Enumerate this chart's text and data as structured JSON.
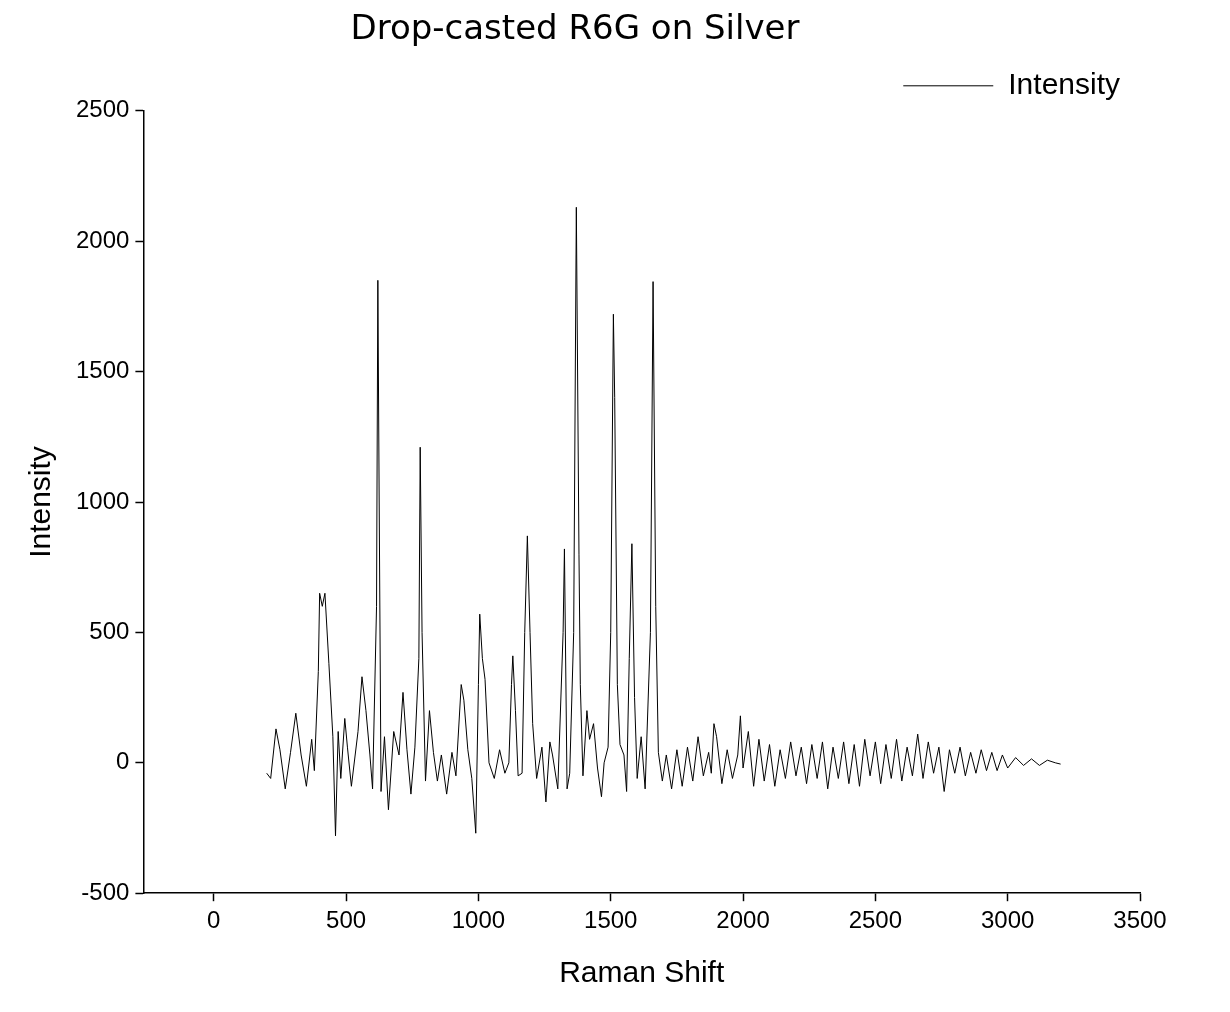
{
  "chart_data": {
    "type": "line",
    "title": "Drop-casted R6G on Silver",
    "xlabel": "Raman Shift",
    "ylabel": "Intensity",
    "xlim": [
      -266,
      3500
    ],
    "xticks": [
      0,
      500,
      1000,
      1500,
      2000,
      2500,
      3000,
      3500
    ],
    "ylim": [
      -500,
      2500
    ],
    "yticks": [
      -500,
      0,
      500,
      1000,
      1500,
      2000,
      2500
    ],
    "grid": false,
    "legend": "top right",
    "line_style": "solid",
    "series": [
      {
        "name": "Intensity",
        "color": "#000000",
        "x": [
          200,
          215,
          235,
          250,
          270,
          290,
          310,
          330,
          350,
          370,
          380,
          395,
          400,
          410,
          420,
          435,
          450,
          460,
          470,
          480,
          495,
          505,
          520,
          545,
          560,
          575,
          590,
          600,
          615,
          620,
          625,
          632,
          645,
          660,
          680,
          700,
          715,
          730,
          745,
          760,
          775,
          780,
          787,
          800,
          815,
          830,
          845,
          860,
          880,
          900,
          915,
          935,
          945,
          960,
          975,
          990,
          1000,
          1005,
          1015,
          1025,
          1040,
          1060,
          1080,
          1100,
          1115,
          1125,
          1130,
          1140,
          1150,
          1165,
          1175,
          1185,
          1195,
          1205,
          1220,
          1240,
          1255,
          1270,
          1280,
          1300,
          1320,
          1325,
          1335,
          1345,
          1360,
          1370,
          1380,
          1385,
          1395,
          1410,
          1420,
          1435,
          1450,
          1465,
          1475,
          1490,
          1500,
          1510,
          1515,
          1525,
          1535,
          1550,
          1560,
          1570,
          1580,
          1590,
          1600,
          1615,
          1630,
          1650,
          1660,
          1670,
          1680,
          1695,
          1710,
          1730,
          1750,
          1770,
          1790,
          1810,
          1830,
          1850,
          1870,
          1880,
          1890,
          1900,
          1920,
          1940,
          1960,
          1980,
          1990,
          2000,
          2020,
          2040,
          2060,
          2080,
          2100,
          2120,
          2140,
          2160,
          2180,
          2200,
          2220,
          2240,
          2260,
          2280,
          2300,
          2320,
          2340,
          2360,
          2380,
          2400,
          2420,
          2440,
          2460,
          2480,
          2500,
          2520,
          2540,
          2560,
          2580,
          2600,
          2620,
          2640,
          2660,
          2680,
          2700,
          2720,
          2740,
          2760,
          2780,
          2800,
          2820,
          2840,
          2860,
          2880,
          2900,
          2920,
          2940,
          2960,
          2980,
          3000,
          3030,
          3060,
          3090,
          3120,
          3150,
          3180,
          3200
        ],
        "values": [
          -40,
          -60,
          130,
          50,
          -100,
          40,
          190,
          30,
          -90,
          90,
          -30,
          350,
          650,
          600,
          650,
          380,
          100,
          -280,
          120,
          -60,
          170,
          60,
          -90,
          120,
          330,
          200,
          30,
          -100,
          600,
          1850,
          1000,
          -110,
          100,
          -180,
          120,
          30,
          270,
          50,
          -120,
          60,
          400,
          1210,
          500,
          -70,
          200,
          40,
          -70,
          30,
          -120,
          40,
          -50,
          300,
          240,
          50,
          -60,
          -270,
          300,
          570,
          400,
          320,
          0,
          -60,
          50,
          -40,
          0,
          300,
          410,
          200,
          -50,
          -40,
          500,
          870,
          500,
          150,
          -60,
          60,
          -150,
          80,
          30,
          -100,
          500,
          820,
          -100,
          -40,
          500,
          2130,
          800,
          300,
          -50,
          200,
          90,
          150,
          -20,
          -130,
          0,
          60,
          500,
          1720,
          1400,
          300,
          70,
          30,
          -110,
          400,
          840,
          250,
          -60,
          100,
          -100,
          500,
          1845,
          600,
          40,
          -70,
          30,
          -100,
          50,
          -90,
          60,
          -70,
          100,
          -50,
          40,
          -40,
          150,
          100,
          -80,
          50,
          -60,
          30,
          180,
          -20,
          120,
          -90,
          90,
          -70,
          70,
          -90,
          50,
          -60,
          80,
          -50,
          60,
          -80,
          70,
          -60,
          80,
          -100,
          60,
          -60,
          80,
          -80,
          70,
          -90,
          90,
          -50,
          80,
          -80,
          70,
          -60,
          90,
          -70,
          60,
          -50,
          110,
          -60,
          80,
          -40,
          60,
          -110,
          50,
          -40,
          60,
          -50,
          40,
          -40,
          50,
          -30,
          40,
          -30,
          30,
          -20,
          20,
          -10,
          15,
          -10,
          10,
          0,
          -5
        ]
      }
    ]
  }
}
